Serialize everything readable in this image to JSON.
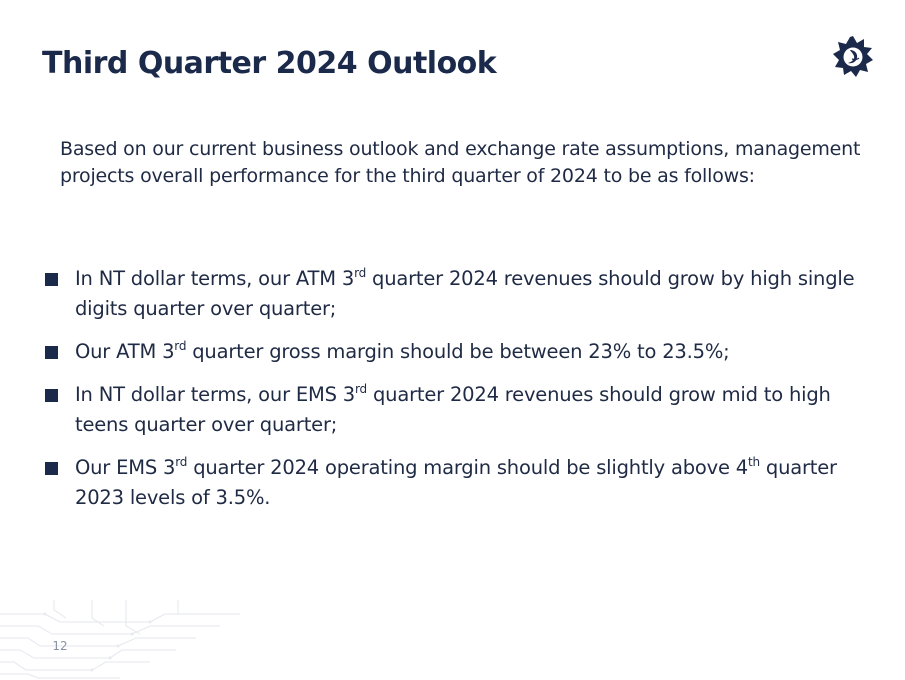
{
  "slide": {
    "title": "Third Quarter 2024 Outlook",
    "intro": "Based on our current business outlook and exchange rate assumptions, management projects overall performance for the third quarter of 2024 to be as follows:",
    "page_number": "12",
    "logo_icon": "sun-logo-icon",
    "accent_color": "#1b2a4a"
  },
  "bullets": [
    {
      "before": "In NT dollar terms, our ATM 3",
      "sup": "rd",
      "after": " quarter 2024 revenues should grow by high single digits quarter over quarter;"
    },
    {
      "before": "Our ATM 3",
      "sup": "rd",
      "after": " quarter gross margin should be between 23% to 23.5%;"
    },
    {
      "before": "In NT dollar terms, our EMS 3",
      "sup": "rd",
      "after": " quarter 2024 revenues should grow mid to high teens quarter over quarter;"
    },
    {
      "before": "Our EMS 3",
      "sup": "rd",
      "after": " quarter 2024 operating margin should be slightly above 4",
      "sup2": "th",
      "after2": " quarter 2023 levels of 3.5%."
    }
  ]
}
